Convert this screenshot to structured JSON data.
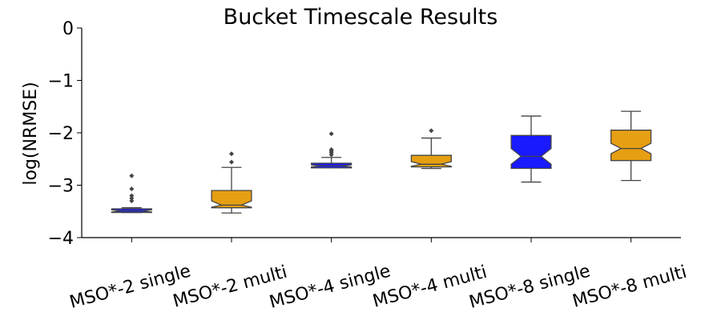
{
  "chart_data": {
    "type": "box",
    "title": "Bucket Timescale Results",
    "xlabel": "",
    "ylabel": "log(NRMSE)",
    "ylim": [
      -4,
      0
    ],
    "yticks": [
      0,
      -1,
      -2,
      -3,
      -4
    ],
    "ytick_labels": [
      "0",
      "−1",
      "−2",
      "−3",
      "−4"
    ],
    "grid": false,
    "notched": true,
    "categories": [
      "MSO*-2 single",
      "MSO*-2 multi",
      "MSO*-4 single",
      "MSO*-4 multi",
      "MSO*-8 single",
      "MSO*-8 multi"
    ],
    "boxes": [
      {
        "category": "MSO*-2 single",
        "color": "#1a1aff",
        "whislo": -3.52,
        "q1": -3.52,
        "med": -3.49,
        "q3": -3.45,
        "whishi": -3.43,
        "notch_lo": -3.51,
        "notch_hi": -3.47,
        "fliers": [
          -2.82,
          -3.07,
          -3.2,
          -3.25,
          -3.3
        ]
      },
      {
        "category": "MSO*-2 multi",
        "color": "#e69f12",
        "whislo": -3.53,
        "q1": -3.43,
        "med": -3.38,
        "q3": -3.1,
        "whishi": -2.66,
        "notch_lo": -3.42,
        "notch_hi": -3.3,
        "fliers": [
          -2.4,
          -2.56
        ]
      },
      {
        "category": "MSO*-4 single",
        "color": "#1a1aff",
        "whislo": -2.67,
        "q1": -2.67,
        "med": -2.63,
        "q3": -2.58,
        "whishi": -2.47,
        "notch_lo": -2.65,
        "notch_hi": -2.61,
        "fliers": [
          -2.02,
          -2.32,
          -2.35,
          -2.38,
          -2.42
        ]
      },
      {
        "category": "MSO*-4 multi",
        "color": "#e69f12",
        "whislo": -2.68,
        "q1": -2.65,
        "med": -2.6,
        "q3": -2.43,
        "whishi": -2.1,
        "notch_lo": -2.64,
        "notch_hi": -2.55,
        "fliers": [
          -1.96
        ]
      },
      {
        "category": "MSO*-8 single",
        "color": "#1a1aff",
        "whislo": -2.94,
        "q1": -2.68,
        "med": -2.45,
        "q3": -2.05,
        "whishi": -1.68,
        "notch_lo": -2.6,
        "notch_hi": -2.3,
        "fliers": []
      },
      {
        "category": "MSO*-8 multi",
        "color": "#e69f12",
        "whislo": -2.91,
        "q1": -2.53,
        "med": -2.3,
        "q3": -1.95,
        "whishi": -1.59,
        "notch_lo": -2.4,
        "notch_hi": -2.2,
        "fliers": []
      }
    ]
  }
}
